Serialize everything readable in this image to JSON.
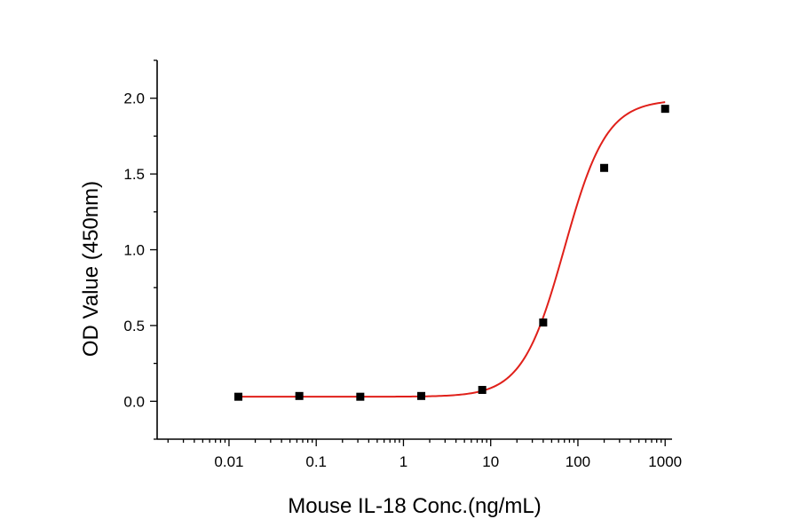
{
  "chart_data": {
    "type": "scatter",
    "title": "",
    "xlabel": "Mouse IL-18 Conc.(ng/mL)",
    "ylabel": "OD Value (450nm)",
    "x_scale": "log",
    "xlim": [
      0.0015,
      1200
    ],
    "ylim": [
      -0.25,
      2.25
    ],
    "x_ticks": [
      0.01,
      0.1,
      1,
      10,
      100,
      1000
    ],
    "x_tick_labels": [
      "0.01",
      "0.1",
      "1",
      "10",
      "100",
      "1000"
    ],
    "y_ticks": [
      0.0,
      0.5,
      1.0,
      1.5,
      2.0
    ],
    "y_tick_labels": [
      "0.0",
      "0.5",
      "1.0",
      "1.5",
      "2.0"
    ],
    "grid": false,
    "series": [
      {
        "x": [
          0.0128,
          0.064,
          0.32,
          1.6,
          8,
          40,
          200,
          1000
        ],
        "y": [
          0.03,
          0.035,
          0.03,
          0.035,
          0.075,
          0.52,
          1.54,
          1.93
        ],
        "marker": "square",
        "color": "#000000"
      }
    ],
    "fit": {
      "model": "4PL",
      "color": "#e0201a",
      "bottom": 0.03,
      "top": 1.99,
      "ec50": 70,
      "hill": 1.8,
      "x_range": [
        0.0128,
        1000
      ]
    }
  }
}
